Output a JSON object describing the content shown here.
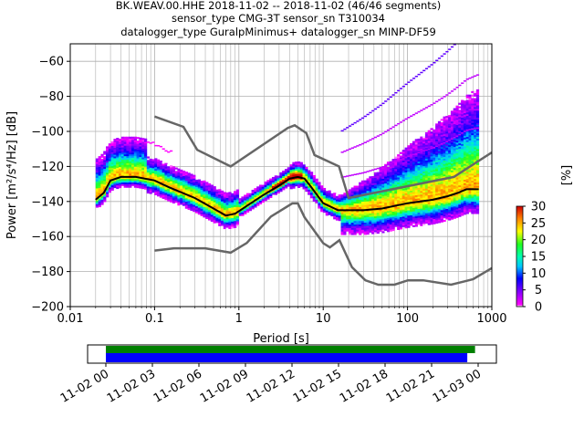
{
  "title_lines": [
    "BK.WEAV.00.HHE   2018-11-02 -- 2018-11-02  (46/46 segments)",
    "sensor_type CMG-3T sensor_sn T310034",
    "datalogger_type GuralpMinimus+ datalogger_sn MINP-DF59"
  ],
  "chart_data": {
    "type": "heatmap",
    "xlabel": "Period [s]",
    "ylabel": "Power [m²/s⁴/Hz] [dB]",
    "x_scale": "log",
    "xlim": [
      0.01,
      1000
    ],
    "ylim": [
      -200,
      -50
    ],
    "xticks": [
      0.01,
      0.1,
      1,
      10,
      100,
      1000
    ],
    "xtick_labels": [
      "0.01",
      "0.1",
      "1",
      "10",
      "100",
      "1000"
    ],
    "yticks": [
      -200,
      -180,
      -160,
      -140,
      -120,
      -100,
      -80,
      -60
    ],
    "ytick_labels": [
      "−200",
      "−180",
      "−160",
      "−140",
      "−120",
      "−100",
      "−80",
      "−60"
    ],
    "grid": true,
    "mode_curve": {
      "x": [
        0.02,
        0.025,
        0.03,
        0.04,
        0.06,
        0.1,
        0.15,
        0.3,
        0.5,
        0.7,
        0.9,
        1.2,
        2,
        3,
        4,
        5,
        6,
        7,
        10,
        15,
        20,
        30,
        50,
        100,
        200,
        300,
        400,
        500,
        700
      ],
      "y": [
        -139,
        -135,
        -128,
        -126,
        -126,
        -128,
        -132,
        -138,
        -144,
        -148,
        -147,
        -143,
        -136,
        -131,
        -127,
        -126,
        -127,
        -131,
        -141,
        -145,
        -145,
        -145,
        -144,
        -141,
        -139,
        -137,
        -135,
        -133,
        -133
      ]
    },
    "nhnm": {
      "x": [
        0.1,
        0.22,
        0.32,
        0.8,
        3.8,
        4.6,
        6.3,
        7.9,
        15.4,
        20,
        354.8,
        1000
      ],
      "y": [
        -91.5,
        -97.4,
        -110.5,
        -120,
        -98,
        -96.5,
        -101,
        -113.5,
        -120,
        -138,
        -126,
        -112
      ]
    },
    "nlnm": {
      "x": [
        0.1,
        0.17,
        0.4,
        0.8,
        1.24,
        2.4,
        4.3,
        5,
        6,
        10,
        12,
        15.6,
        21.9,
        31.6,
        45,
        70,
        101,
        154,
        328,
        600,
        1000
      ],
      "y": [
        -168,
        -166.7,
        -166.7,
        -169.2,
        -163.7,
        -148.6,
        -141.1,
        -141.1,
        -149,
        -163.8,
        -166.2,
        -162.1,
        -177.5,
        -185,
        -187.5,
        -187.5,
        -185,
        -185,
        -187.5,
        -184.4,
        -178
      ]
    },
    "colorbar": {
      "label": "[%]",
      "range": [
        0,
        30
      ],
      "ticks": [
        0,
        5,
        10,
        15,
        20,
        25,
        30
      ],
      "tick_labels": [
        "0",
        "5",
        "10",
        "15",
        "20",
        "25",
        "30"
      ]
    },
    "coverage": {
      "x_range_hours": [
        0,
        24
      ],
      "ticks": [
        "11-02 00",
        "11-02 03",
        "11-02 06",
        "11-02 09",
        "11-02 12",
        "11-02 15",
        "11-02 18",
        "11-02 21",
        "11-03 00"
      ],
      "bars": [
        {
          "color": "#008000",
          "start_hours": 0,
          "end_hours": 23.8
        },
        {
          "color": "#0000ff",
          "start_hours": 0,
          "end_hours": 23.3
        }
      ]
    },
    "colors": {
      "mode_curve": "#000000",
      "noise_models": "#666666",
      "grid": "#b0b0b0"
    }
  }
}
